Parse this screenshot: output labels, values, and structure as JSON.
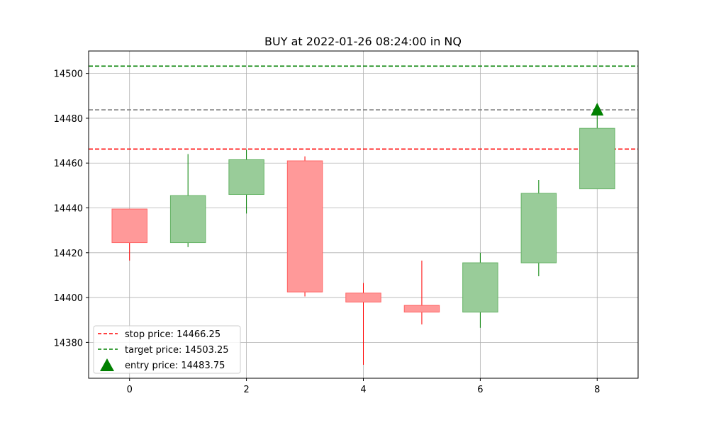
{
  "chart_data": {
    "type": "candlestick",
    "title": "BUY at 2022-01-26 08:24:00 in NQ",
    "xlabel": "",
    "ylabel": "",
    "xlim": [
      -0.7,
      8.7
    ],
    "ylim": [
      14364,
      14510
    ],
    "x_ticks": [
      0,
      2,
      4,
      6,
      8
    ],
    "y_ticks": [
      14380,
      14400,
      14420,
      14440,
      14460,
      14480,
      14500
    ],
    "grid": true,
    "candles": [
      {
        "x": 0,
        "open": 14439.5,
        "high": 14439.5,
        "low": 14416.5,
        "close": 14424.5
      },
      {
        "x": 1,
        "open": 14424.5,
        "high": 14464.0,
        "low": 14422.5,
        "close": 14445.5
      },
      {
        "x": 2,
        "open": 14446.0,
        "high": 14466.0,
        "low": 14437.5,
        "close": 14461.5
      },
      {
        "x": 3,
        "open": 14461.0,
        "high": 14463.0,
        "low": 14400.5,
        "close": 14402.5
      },
      {
        "x": 4,
        "open": 14402.0,
        "high": 14406.5,
        "low": 14370.0,
        "close": 14398.0
      },
      {
        "x": 5,
        "open": 14396.5,
        "high": 14416.5,
        "low": 14388.0,
        "close": 14393.5
      },
      {
        "x": 6,
        "open": 14393.5,
        "high": 14420.0,
        "low": 14386.5,
        "close": 14415.5
      },
      {
        "x": 7,
        "open": 14415.5,
        "high": 14452.5,
        "low": 14409.5,
        "close": 14446.5
      },
      {
        "x": 8,
        "open": 14448.5,
        "high": 14482.0,
        "low": 14448.5,
        "close": 14475.5
      }
    ],
    "lines": [
      {
        "label": "stop price: 14466.25",
        "value": 14466.25,
        "color": "#ff0000",
        "style": "dashed"
      },
      {
        "label": "target price: 14503.25",
        "value": 14503.25,
        "color": "#008000",
        "style": "dashed"
      },
      {
        "value": 14483.75,
        "color": "#808080",
        "style": "dashed"
      }
    ],
    "entry_marker": {
      "label": "entry price: 14483.75",
      "x": 8,
      "value": 14483.75,
      "color": "#008000",
      "shape": "triangle-up"
    },
    "legend_position": "lower-left",
    "colors": {
      "up_body": "#99cc99",
      "up_edge": "#66b366",
      "up_wick": "#008000",
      "down_body": "#ff9999",
      "down_edge": "#ff6666",
      "down_wick": "#ff0000"
    }
  }
}
